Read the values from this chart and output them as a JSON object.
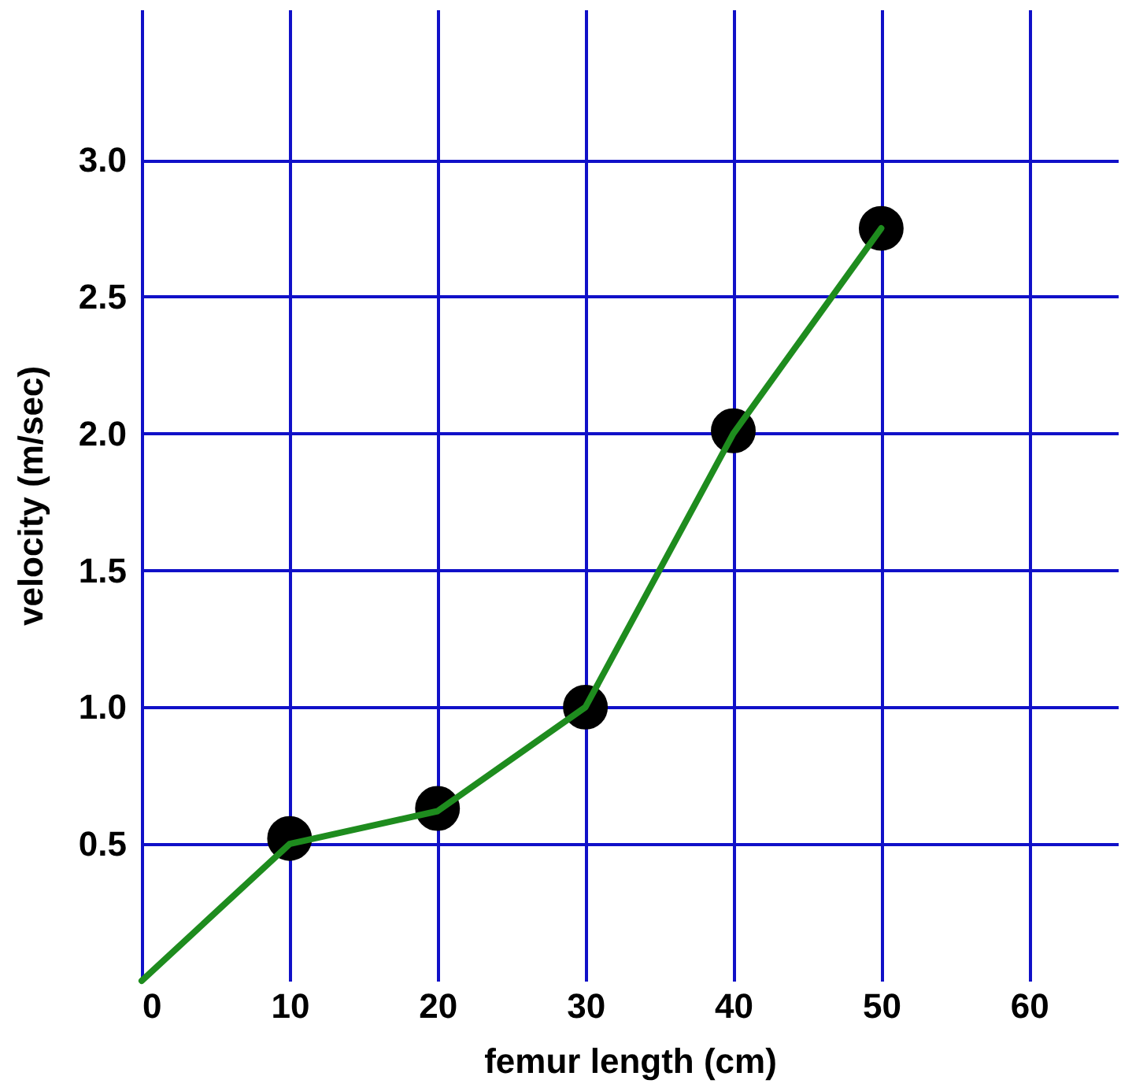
{
  "chart_data": {
    "type": "line",
    "xlabel": "femur length (cm)",
    "ylabel": "velocity (m/sec)",
    "series": [
      {
        "type": "scatter",
        "color": "#000000",
        "x": [
          10,
          20,
          30,
          40,
          50
        ],
        "values": [
          0.52,
          0.63,
          1.0,
          2.01,
          2.75
        ],
        "marker": "circle"
      },
      {
        "color": "#1e8c1e",
        "x": [
          0,
          10,
          20,
          30,
          40,
          50
        ],
        "values": [
          0,
          0.5,
          0.62,
          1.0,
          2.0,
          2.75
        ],
        "marker": "none"
      }
    ],
    "xlim": [
      0,
      66
    ],
    "xticks": [
      0,
      10,
      20,
      30,
      40,
      50,
      60
    ],
    "ylim": [
      0,
      3.55
    ],
    "yticks": [
      0.5,
      {
        "value": 1,
        "label": "1.0"
      },
      1.5,
      {
        "value": 2,
        "label": "2.0"
      },
      2.5,
      {
        "value": 3,
        "label": "3.0"
      }
    ],
    "grid": true
  }
}
